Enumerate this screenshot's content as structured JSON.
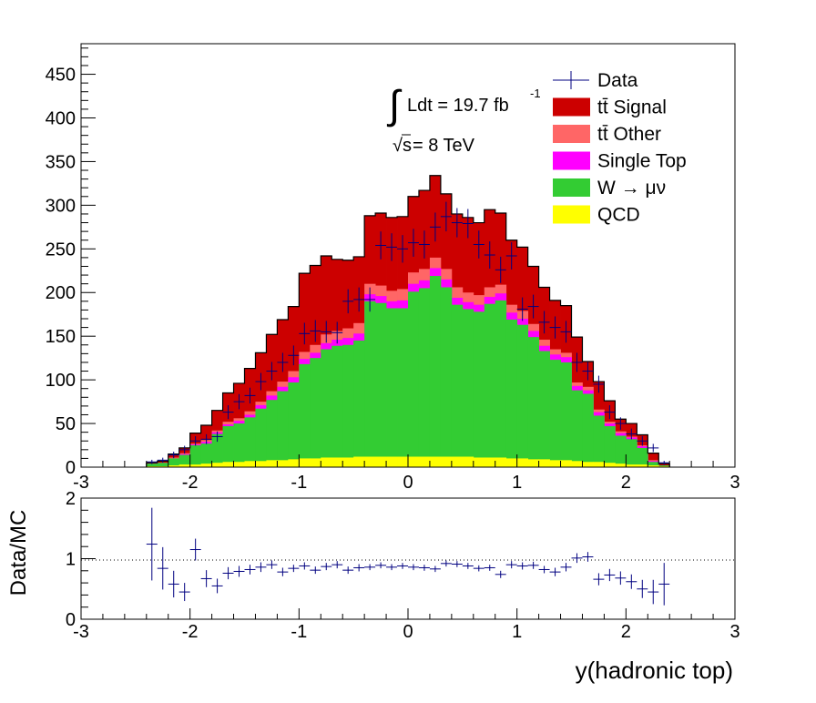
{
  "chart_data": [
    {
      "type": "stacked-histogram",
      "xlim": [
        -3,
        3
      ],
      "ylim": [
        0,
        485
      ],
      "y_ticks": [
        0,
        50,
        100,
        150,
        200,
        250,
        300,
        350,
        400,
        450
      ],
      "x_ticks": [
        -3,
        -2,
        -1,
        0,
        1,
        2,
        3
      ],
      "bin_edges_range": [
        -2.4,
        2.4
      ],
      "bin_count": 48,
      "annotations": {
        "lumi_integral": "∫",
        "lumi_text": "Ldt = 19.7 fb",
        "lumi_sup": "-1",
        "energy_root": "√",
        "energy_var": "s",
        "energy_text": " = 8 TeV"
      },
      "legend": [
        {
          "label": "Data",
          "kind": "marker",
          "color": "#000080"
        },
        {
          "label": "tt̄ Signal",
          "kind": "box",
          "color": "#cc0000"
        },
        {
          "label": "tt̄ Other",
          "kind": "box",
          "color": "#ff6666"
        },
        {
          "label": "Single Top",
          "kind": "box",
          "color": "#ff00ff"
        },
        {
          "label": "W → μν",
          "kind": "box",
          "color": "#33cc33"
        },
        {
          "label": "QCD",
          "kind": "box",
          "color": "#ffff00"
        }
      ],
      "series": [
        {
          "name": "QCD",
          "color": "#ffff00",
          "values": [
            1,
            1,
            2,
            3,
            3,
            4,
            5,
            6,
            6,
            7,
            7,
            8,
            8,
            9,
            10,
            10,
            11,
            11,
            11,
            12,
            12,
            12,
            12,
            12,
            12,
            12,
            12,
            12,
            12,
            12,
            11,
            11,
            11,
            10,
            10,
            9,
            9,
            8,
            8,
            7,
            6,
            6,
            5,
            4,
            3,
            3,
            2,
            1
          ]
        },
        {
          "name": "W → μν",
          "color": "#33cc33",
          "values": [
            3,
            4,
            8,
            11,
            22,
            23,
            33,
            41,
            44,
            50,
            60,
            69,
            79,
            88,
            108,
            115,
            124,
            128,
            129,
            133,
            178,
            176,
            170,
            170,
            189,
            193,
            207,
            194,
            174,
            169,
            167,
            176,
            180,
            159,
            153,
            140,
            124,
            115,
            112,
            81,
            78,
            53,
            42,
            32,
            29,
            19,
            4,
            1
          ]
        },
        {
          "name": "Single Top",
          "color": "#ff00ff",
          "values": [
            0,
            0,
            0,
            1,
            1,
            2,
            2,
            2,
            3,
            3,
            4,
            5,
            5,
            6,
            6,
            6,
            7,
            7,
            8,
            8,
            8,
            8,
            8,
            9,
            9,
            9,
            9,
            9,
            8,
            8,
            8,
            8,
            8,
            8,
            7,
            7,
            6,
            6,
            6,
            5,
            4,
            4,
            3,
            3,
            2,
            2,
            1,
            0
          ]
        },
        {
          "name": "tt̄ Other",
          "color": "#ff6666",
          "values": [
            0,
            0,
            1,
            1,
            1,
            2,
            2,
            3,
            3,
            4,
            4,
            5,
            6,
            7,
            8,
            9,
            10,
            10,
            11,
            12,
            12,
            12,
            12,
            13,
            13,
            13,
            12,
            12,
            12,
            11,
            11,
            11,
            10,
            9,
            9,
            8,
            7,
            6,
            5,
            4,
            4,
            3,
            2,
            2,
            1,
            1,
            1,
            0
          ]
        },
        {
          "name": "tt̄ Signal",
          "color": "#cc0000",
          "values": [
            1,
            2,
            4,
            6,
            12,
            17,
            23,
            33,
            40,
            49,
            56,
            65,
            71,
            74,
            90,
            91,
            90,
            82,
            78,
            76,
            78,
            83,
            84,
            83,
            87,
            90,
            94,
            86,
            84,
            86,
            83,
            89,
            82,
            74,
            73,
            66,
            60,
            56,
            54,
            52,
            29,
            32,
            24,
            14,
            15,
            12,
            8,
            2
          ]
        },
        {
          "name": "Data",
          "color": "#000080",
          "kind": "points",
          "values": [
            6,
            8,
            14,
            20,
            30,
            32,
            35,
            63,
            75,
            82,
            98,
            110,
            120,
            128,
            153,
            156,
            155,
            154,
            190,
            192,
            192,
            254,
            252,
            250,
            257,
            255,
            275,
            287,
            280,
            279,
            255,
            243,
            226,
            242,
            181,
            184,
            166,
            160,
            155,
            120,
            110,
            95,
            63,
            50,
            38,
            30,
            22,
            5
          ]
        }
      ]
    },
    {
      "type": "ratio",
      "ylabel": "Data/MC",
      "xlabel": "y(hadronic top)",
      "xlim": [
        -3,
        3
      ],
      "ylim": [
        0,
        2
      ],
      "y_ticks": [
        0,
        1,
        2
      ],
      "x_ticks": [
        -3,
        -2,
        -1,
        0,
        1,
        2,
        3
      ],
      "reference_line": 1,
      "values": [
        1.24,
        0.84,
        0.58,
        0.45,
        1.15,
        0.67,
        0.55,
        0.76,
        0.79,
        0.82,
        0.86,
        0.9,
        0.78,
        0.84,
        0.88,
        0.81,
        0.87,
        0.9,
        0.81,
        0.85,
        0.86,
        0.89,
        0.86,
        0.88,
        0.86,
        0.85,
        0.83,
        0.92,
        0.91,
        0.88,
        0.84,
        0.85,
        0.74,
        0.9,
        0.88,
        0.89,
        0.82,
        0.78,
        0.86,
        1.01,
        1.03,
        0.66,
        0.73,
        0.68,
        0.62,
        0.5,
        0.45,
        0.58
      ],
      "errors": [
        0.6,
        0.35,
        0.22,
        0.15,
        0.18,
        0.14,
        0.12,
        0.1,
        0.09,
        0.08,
        0.08,
        0.07,
        0.07,
        0.06,
        0.06,
        0.06,
        0.06,
        0.06,
        0.06,
        0.06,
        0.05,
        0.05,
        0.05,
        0.05,
        0.05,
        0.05,
        0.05,
        0.05,
        0.05,
        0.05,
        0.05,
        0.05,
        0.06,
        0.06,
        0.06,
        0.06,
        0.06,
        0.07,
        0.07,
        0.08,
        0.08,
        0.1,
        0.1,
        0.11,
        0.12,
        0.15,
        0.2,
        0.35
      ]
    }
  ]
}
